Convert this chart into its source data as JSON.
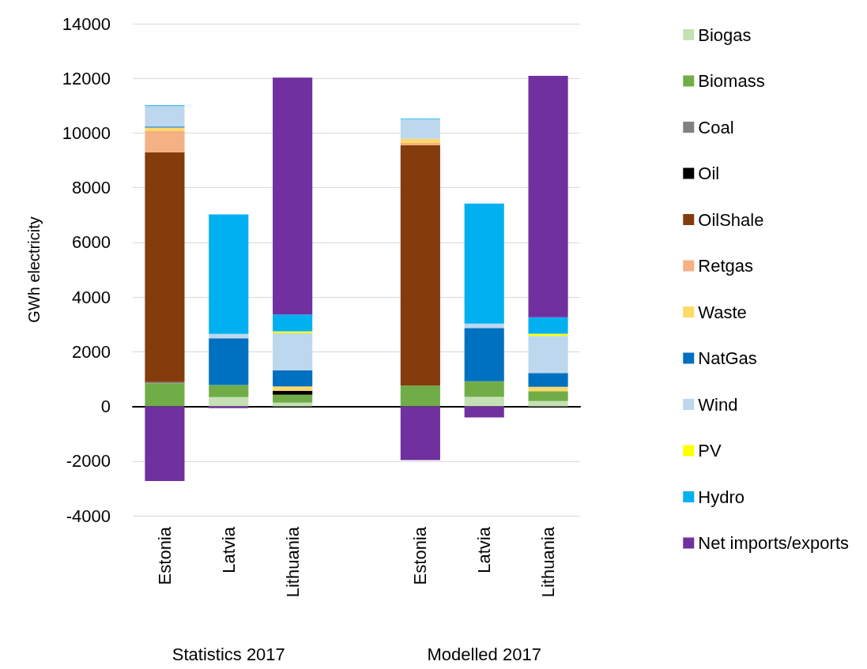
{
  "chart_data": {
    "type": "bar",
    "stacked": true,
    "ylabel": "GWh electricity",
    "categories": [
      "Estonia",
      "Latvia",
      "Lithuania",
      null,
      "Estonia",
      "Latvia",
      "Lithuania"
    ],
    "series": [
      {
        "name": "Biogas",
        "color": "#c5e0b4",
        "values": [
          0,
          340,
          140,
          null,
          0,
          350,
          200
        ]
      },
      {
        "name": "Biomass",
        "color": "#70ad47",
        "values": [
          850,
          440,
          290,
          null,
          760,
          570,
          360
        ]
      },
      {
        "name": "Coal",
        "color": "#808080",
        "values": [
          40,
          0,
          0,
          null,
          0,
          0,
          0
        ]
      },
      {
        "name": "Oil",
        "color": "#000000",
        "values": [
          0,
          0,
          140,
          null,
          0,
          0,
          0
        ]
      },
      {
        "name": "OilShale",
        "color": "#843c0c",
        "values": [
          8400,
          0,
          0,
          null,
          8790,
          0,
          0
        ]
      },
      {
        "name": "Retgas",
        "color": "#f4b183",
        "values": [
          790,
          0,
          0,
          null,
          90,
          0,
          0
        ]
      },
      {
        "name": "Waste",
        "color": "#ffd966",
        "values": [
          120,
          0,
          160,
          null,
          150,
          0,
          160
        ]
      },
      {
        "name": "NatGas",
        "color": "#0070c0",
        "values": [
          40,
          1710,
          590,
          null,
          0,
          1950,
          500
        ]
      },
      {
        "name": "Wind",
        "color": "#bdd7ee",
        "values": [
          750,
          160,
          1360,
          null,
          720,
          160,
          1360
        ]
      },
      {
        "name": "PV",
        "color": "#ffff00",
        "values": [
          0,
          0,
          70,
          null,
          0,
          0,
          80
        ]
      },
      {
        "name": "Hydro",
        "color": "#00b0f0",
        "values": [
          30,
          4370,
          610,
          null,
          20,
          4390,
          600
        ]
      },
      {
        "name": "Net imports/exports",
        "color": "#7030a0",
        "values": [
          -2730,
          -60,
          8670,
          null,
          -1960,
          -400,
          8830
        ]
      }
    ],
    "ylim": [
      -4000,
      14000
    ],
    "yticks": [
      -4000,
      -2000,
      0,
      2000,
      4000,
      6000,
      8000,
      10000,
      12000,
      14000
    ],
    "grid": "y",
    "legend": "right",
    "annotations": [
      "Statistics 2017",
      "Modelled 2017"
    ]
  }
}
